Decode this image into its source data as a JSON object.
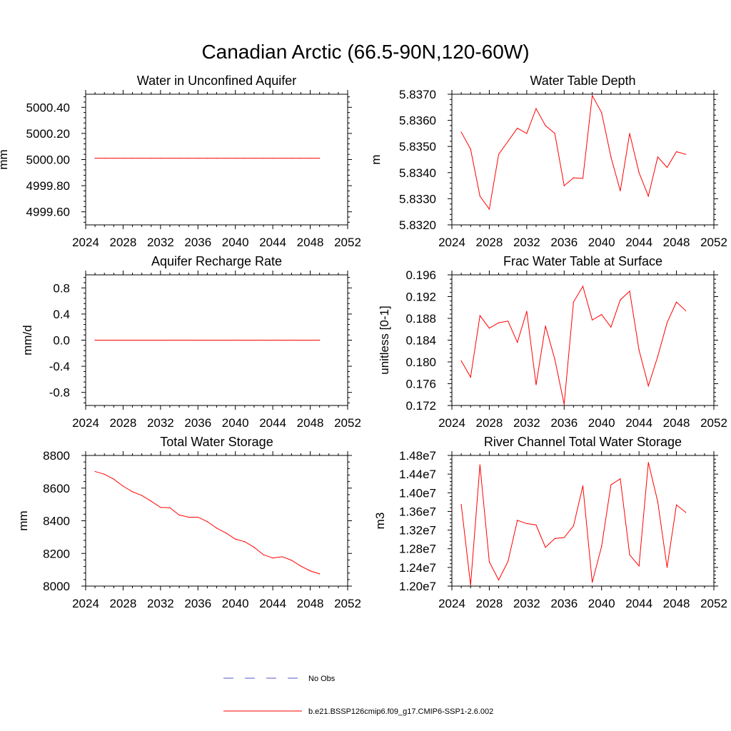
{
  "figure_title": "Canadian Arctic (66.5-90N,120-60W)",
  "chart_data": [
    {
      "type": "line",
      "title": "Water in Unconfined Aquifer",
      "ylabel": "mm",
      "xlim": [
        2024,
        2052
      ],
      "ylim": [
        4999.5,
        5000.5
      ],
      "xticks": [
        2024,
        2028,
        2032,
        2036,
        2040,
        2044,
        2048,
        2052
      ],
      "yticks": [
        4999.6,
        4999.8,
        5000.0,
        5000.2,
        5000.4
      ],
      "ytick_labels": [
        "4999.60",
        "4999.80",
        "5000.00",
        "5000.20",
        "5000.40"
      ],
      "x": [
        2025,
        2026,
        2027,
        2028,
        2029,
        2030,
        2031,
        2032,
        2033,
        2034,
        2035,
        2036,
        2037,
        2038,
        2039,
        2040,
        2041,
        2042,
        2043,
        2044,
        2045,
        2046,
        2047,
        2048,
        2049
      ],
      "series": [
        {
          "name": "b.e21.BSSP126cmip6.f09_g17.CMIP6-SSP1-2.6.002",
          "color": "#ff0000",
          "values": [
            5000.01,
            5000.01,
            5000.01,
            5000.01,
            5000.01,
            5000.01,
            5000.01,
            5000.01,
            5000.01,
            5000.01,
            5000.01,
            5000.01,
            5000.01,
            5000.01,
            5000.01,
            5000.01,
            5000.01,
            5000.01,
            5000.01,
            5000.01,
            5000.01,
            5000.01,
            5000.01,
            5000.01,
            5000.01
          ]
        }
      ]
    },
    {
      "type": "line",
      "title": "Water Table Depth",
      "ylabel": "m",
      "xlim": [
        2024,
        2052
      ],
      "ylim": [
        5.832,
        5.837
      ],
      "xticks": [
        2024,
        2028,
        2032,
        2036,
        2040,
        2044,
        2048,
        2052
      ],
      "yticks": [
        5.832,
        5.833,
        5.834,
        5.835,
        5.836,
        5.837
      ],
      "ytick_labels": [
        "5.8320",
        "5.8330",
        "5.8340",
        "5.8350",
        "5.8360",
        "5.8370"
      ],
      "x": [
        2025,
        2026,
        2027,
        2028,
        2029,
        2030,
        2031,
        2032,
        2033,
        2034,
        2035,
        2036,
        2037,
        2038,
        2039,
        2040,
        2041,
        2042,
        2043,
        2044,
        2045,
        2046,
        2047,
        2048,
        2049
      ],
      "series": [
        {
          "name": "b.e21.BSSP126cmip6.f09_g17.CMIP6-SSP1-2.6.002",
          "color": "#ff0000",
          "values": [
            5.83555,
            5.8349,
            5.8331,
            5.8326,
            5.8347,
            5.8352,
            5.8357,
            5.8355,
            5.83645,
            5.8358,
            5.8355,
            5.8335,
            5.8338,
            5.83378,
            5.83695,
            5.8363,
            5.8346,
            5.8333,
            5.8355,
            5.834,
            5.8331,
            5.8346,
            5.8342,
            5.8348,
            5.8347
          ]
        }
      ]
    },
    {
      "type": "line",
      "title": "Aquifer Recharge Rate",
      "ylabel": "mm/d",
      "xlim": [
        2024,
        2052
      ],
      "ylim": [
        -1.0,
        1.0
      ],
      "xticks": [
        2024,
        2028,
        2032,
        2036,
        2040,
        2044,
        2048,
        2052
      ],
      "yticks": [
        -0.8,
        -0.4,
        0.0,
        0.4,
        0.8
      ],
      "ytick_labels": [
        "-0.8",
        "-0.4",
        "0.0",
        "0.4",
        "0.8"
      ],
      "x": [
        2025,
        2026,
        2027,
        2028,
        2029,
        2030,
        2031,
        2032,
        2033,
        2034,
        2035,
        2036,
        2037,
        2038,
        2039,
        2040,
        2041,
        2042,
        2043,
        2044,
        2045,
        2046,
        2047,
        2048,
        2049
      ],
      "series": [
        {
          "name": "b.e21.BSSP126cmip6.f09_g17.CMIP6-SSP1-2.6.002",
          "color": "#ff0000",
          "values": [
            0,
            0,
            0,
            0,
            0,
            0,
            0,
            0,
            0,
            0,
            0,
            0,
            0,
            0,
            0,
            0,
            0,
            0,
            0,
            0,
            0,
            0,
            0,
            0,
            0
          ]
        }
      ]
    },
    {
      "type": "line",
      "title": "Frac Water Table at Surface",
      "ylabel": "unitless [0-1]",
      "xlim": [
        2024,
        2052
      ],
      "ylim": [
        0.172,
        0.196
      ],
      "xticks": [
        2024,
        2028,
        2032,
        2036,
        2040,
        2044,
        2048,
        2052
      ],
      "yticks": [
        0.172,
        0.176,
        0.18,
        0.184,
        0.188,
        0.192,
        0.196
      ],
      "ytick_labels": [
        "0.172",
        "0.176",
        "0.180",
        "0.184",
        "0.188",
        "0.192",
        "0.196"
      ],
      "x": [
        2025,
        2026,
        2027,
        2028,
        2029,
        2030,
        2031,
        2032,
        2033,
        2034,
        2035,
        2036,
        2037,
        2038,
        2039,
        2040,
        2041,
        2042,
        2043,
        2044,
        2045,
        2046,
        2047,
        2048,
        2049
      ],
      "series": [
        {
          "name": "b.e21.BSSP126cmip6.f09_g17.CMIP6-SSP1-2.6.002",
          "color": "#ff0000",
          "values": [
            0.1802,
            0.1772,
            0.1885,
            0.1862,
            0.1872,
            0.1875,
            0.1836,
            0.1893,
            0.1758,
            0.1866,
            0.1805,
            0.1722,
            0.191,
            0.1939,
            0.1877,
            0.1887,
            0.1864,
            0.1914,
            0.193,
            0.1822,
            0.1756,
            0.181,
            0.1872,
            0.191,
            0.1894
          ]
        }
      ]
    },
    {
      "type": "line",
      "title": "Total Water Storage",
      "ylabel": "mm",
      "xlim": [
        2024,
        2052
      ],
      "ylim": [
        8000,
        8800
      ],
      "xticks": [
        2024,
        2028,
        2032,
        2036,
        2040,
        2044,
        2048,
        2052
      ],
      "yticks": [
        8000,
        8200,
        8400,
        8600,
        8800
      ],
      "ytick_labels": [
        "8000",
        "8200",
        "8400",
        "8600",
        "8800"
      ],
      "x": [
        2025,
        2026,
        2027,
        2028,
        2029,
        2030,
        2031,
        2032,
        2033,
        2034,
        2035,
        2036,
        2037,
        2038,
        2039,
        2040,
        2041,
        2042,
        2043,
        2044,
        2045,
        2046,
        2047,
        2048,
        2049
      ],
      "series": [
        {
          "name": "b.e21.BSSP126cmip6.f09_g17.CMIP6-SSP1-2.6.002",
          "color": "#ff0000",
          "values": [
            8702,
            8685,
            8655,
            8612,
            8578,
            8555,
            8520,
            8482,
            8480,
            8435,
            8422,
            8422,
            8395,
            8355,
            8325,
            8288,
            8272,
            8238,
            8192,
            8172,
            8180,
            8158,
            8122,
            8093,
            8075
          ]
        }
      ]
    },
    {
      "type": "line",
      "title": "River Channel Total Water Storage",
      "ylabel": "m3",
      "xlim": [
        2024,
        2052
      ],
      "ylim": [
        12000000,
        14800000
      ],
      "xticks": [
        2024,
        2028,
        2032,
        2036,
        2040,
        2044,
        2048,
        2052
      ],
      "yticks": [
        12000000,
        12400000,
        12800000,
        13200000,
        13600000,
        14000000,
        14400000,
        14800000
      ],
      "ytick_labels": [
        "1.20e7",
        "1.24e7",
        "1.28e7",
        "1.32e7",
        "1.36e7",
        "1.40e7",
        "1.44e7",
        "1.48e7"
      ],
      "x": [
        2025,
        2026,
        2027,
        2028,
        2029,
        2030,
        2031,
        2032,
        2033,
        2034,
        2035,
        2036,
        2037,
        2038,
        2039,
        2040,
        2041,
        2042,
        2043,
        2044,
        2045,
        2046,
        2047,
        2048,
        2049
      ],
      "series": [
        {
          "name": "b.e21.BSSP126cmip6.f09_g17.CMIP6-SSP1-2.6.002",
          "color": "#ff0000",
          "values": [
            13750000,
            12020000,
            14600000,
            12520000,
            12130000,
            12530000,
            13410000,
            13340000,
            13310000,
            12830000,
            13020000,
            13040000,
            13290000,
            14150000,
            12080000,
            12850000,
            14170000,
            14300000,
            12670000,
            12430000,
            14650000,
            13810000,
            12400000,
            13740000,
            13580000
          ]
        }
      ]
    }
  ],
  "legend": {
    "items": [
      {
        "label": "No Obs",
        "color": "#5555cc",
        "style": "dashed"
      },
      {
        "label": "b.e21.BSSP126cmip6.f09_g17.CMIP6-SSP1-2.6.002",
        "color": "#ff0000",
        "style": "solid"
      }
    ]
  }
}
